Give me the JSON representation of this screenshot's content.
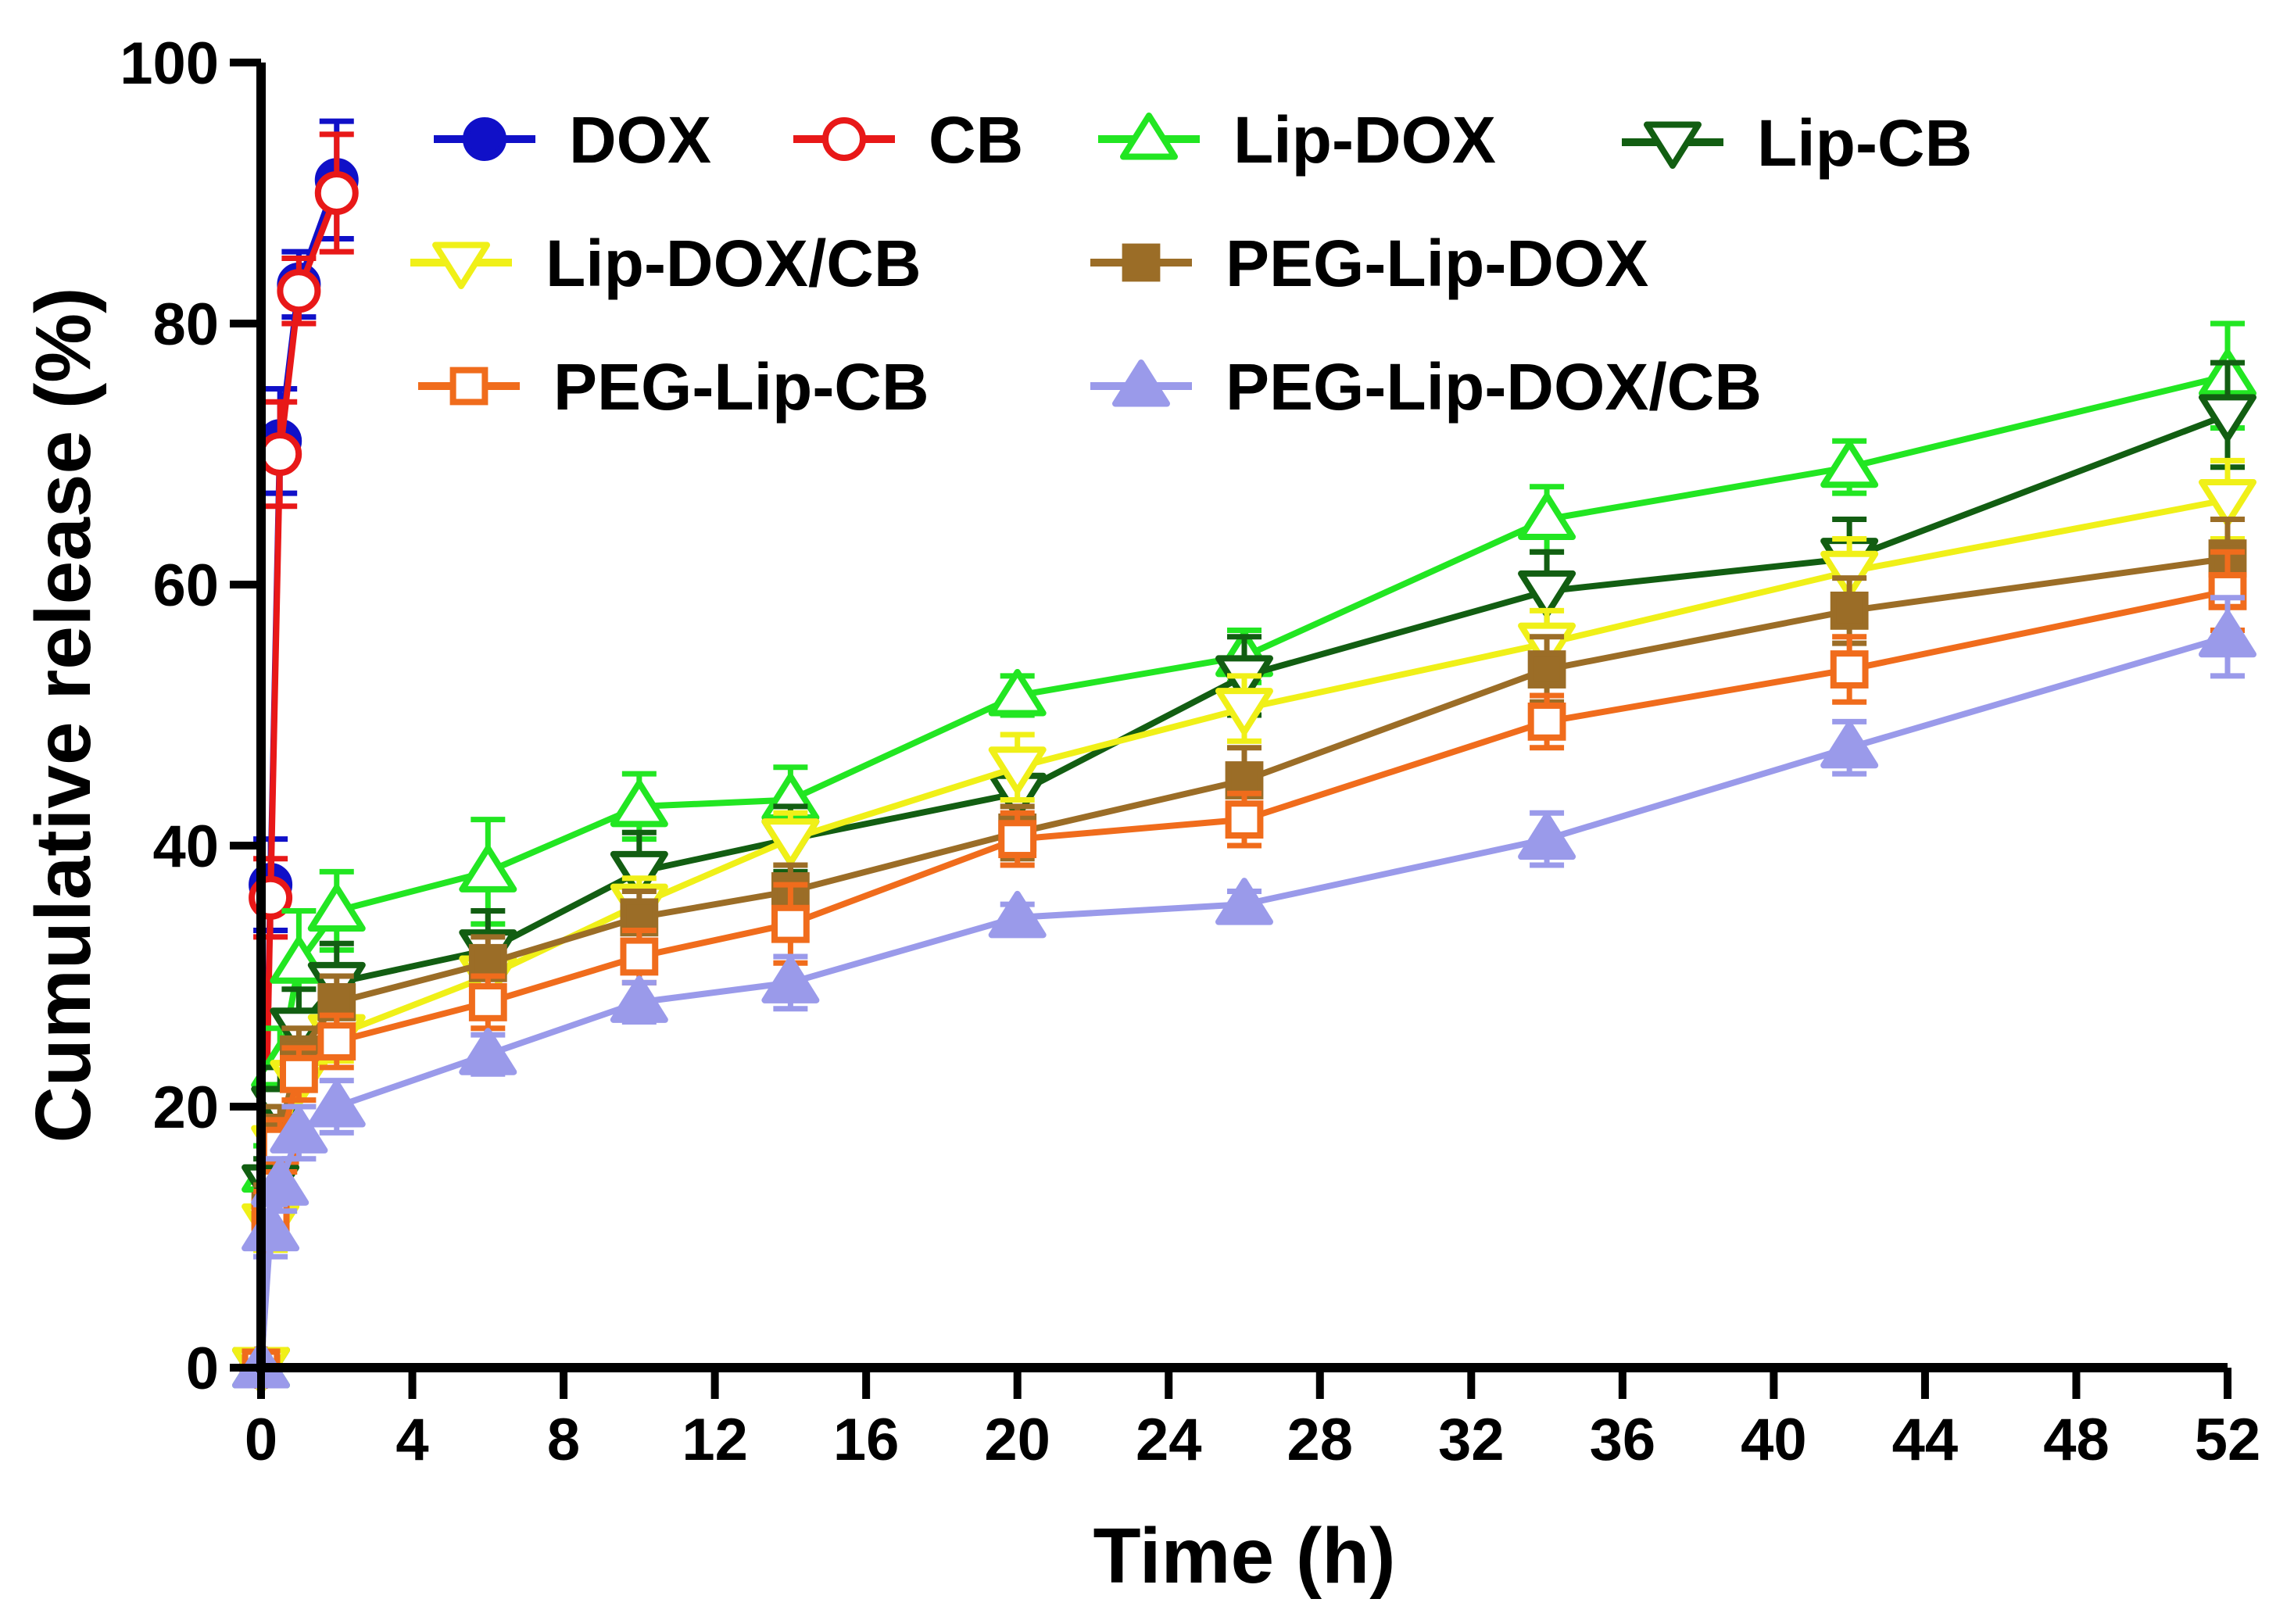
{
  "chart_data": {
    "type": "line",
    "title": "",
    "xlabel": "Time (h)",
    "ylabel": "Cumulative release (%)",
    "xlim": [
      0,
      52
    ],
    "ylim": [
      0,
      100
    ],
    "xticks": [
      0,
      4,
      8,
      12,
      16,
      20,
      24,
      28,
      32,
      36,
      40,
      44,
      48,
      52
    ],
    "yticks": [
      0,
      20,
      40,
      60,
      80,
      100
    ],
    "grid": false,
    "legend_position": "top",
    "series": [
      {
        "name": "DOX",
        "color": "#1010c8",
        "marker": "circle-filled",
        "x": [
          0,
          0.25,
          0.5,
          1,
          2
        ],
        "y": [
          0,
          37,
          71,
          83,
          91
        ],
        "err": [
          0,
          3.5,
          4,
          2.5,
          4.5
        ]
      },
      {
        "name": "CB",
        "color": "#e81818",
        "marker": "circle-open",
        "x": [
          0,
          0.25,
          0.5,
          1,
          2
        ],
        "y": [
          0,
          36,
          70,
          82.5,
          90
        ],
        "err": [
          0,
          3,
          4,
          2.5,
          4.5
        ]
      },
      {
        "name": "Lip-DOX",
        "color": "#22e622",
        "marker": "triangle-up-open",
        "x": [
          0,
          0.25,
          0.5,
          1,
          2,
          6,
          10,
          14,
          20,
          26,
          34,
          42,
          52
        ],
        "y": [
          0,
          15,
          23,
          31,
          35,
          38,
          43,
          43.5,
          51.5,
          54.5,
          65,
          69,
          76
        ],
        "err": [
          0,
          2,
          3,
          4,
          3,
          4,
          2.5,
          2.5,
          1.5,
          2,
          2.5,
          2,
          4
        ]
      },
      {
        "name": "Lip-CB",
        "color": "#125e12",
        "marker": "triangle-down-open",
        "x": [
          0,
          0.25,
          0.5,
          1,
          2,
          6,
          10,
          14,
          20,
          26,
          34,
          42,
          52
        ],
        "y": [
          0,
          14,
          20,
          26,
          29.5,
          32,
          38,
          40.5,
          44,
          53,
          59.5,
          62,
          73
        ],
        "err": [
          0,
          2,
          3,
          3,
          3,
          3,
          3,
          2.5,
          2.5,
          3,
          3,
          3,
          4
        ]
      },
      {
        "name": "Lip-DOX/CB",
        "color": "#f0f018",
        "marker": "triangle-down-open",
        "x": [
          0,
          0.25,
          0.5,
          1,
          2,
          6,
          10,
          14,
          20,
          26,
          34,
          42,
          52
        ],
        "y": [
          0,
          11,
          17,
          22,
          25.5,
          30,
          35.5,
          40.5,
          46,
          50.5,
          55.5,
          61,
          66.5
        ],
        "err": [
          0,
          2,
          2,
          2,
          2,
          2,
          2,
          2,
          2.5,
          2.5,
          2.5,
          2.5,
          3
        ]
      },
      {
        "name": "PEG-Lip-DOX",
        "color": "#9b6d27",
        "marker": "square-filled",
        "x": [
          0,
          0.25,
          0.5,
          1,
          2,
          6,
          10,
          14,
          20,
          26,
          34,
          42,
          52
        ],
        "y": [
          0,
          12,
          18,
          24,
          28,
          31,
          34.5,
          36.5,
          41,
          45,
          53.5,
          58,
          62
        ],
        "err": [
          0,
          2,
          2,
          2,
          2,
          2,
          2,
          2,
          2,
          2.5,
          2.5,
          2.5,
          3
        ]
      },
      {
        "name": "PEG-Lip-CB",
        "color": "#f06c1c",
        "marker": "square-open",
        "x": [
          0,
          0.25,
          0.5,
          1,
          2,
          6,
          10,
          14,
          20,
          26,
          34,
          42,
          52
        ],
        "y": [
          0,
          11.5,
          17,
          22.5,
          25,
          28,
          31.5,
          34,
          40.5,
          42,
          49.5,
          53.5,
          59.5
        ],
        "err": [
          0,
          2,
          2,
          2,
          2,
          2,
          2,
          3,
          2,
          2,
          2,
          2.5,
          3
        ]
      },
      {
        "name": "PEG-Lip-DOX/CB",
        "color": "#9a9aea",
        "marker": "triangle-up-filled",
        "x": [
          0,
          0.25,
          0.5,
          1,
          2,
          6,
          10,
          14,
          20,
          26,
          34,
          42,
          52
        ],
        "y": [
          0,
          10.5,
          14,
          18,
          20,
          24,
          28,
          29.5,
          34.5,
          35.5,
          40.5,
          47.5,
          56
        ],
        "err": [
          0,
          2,
          2,
          2,
          2,
          1.5,
          1.5,
          2,
          1,
          1,
          2,
          2,
          3
        ]
      }
    ]
  }
}
